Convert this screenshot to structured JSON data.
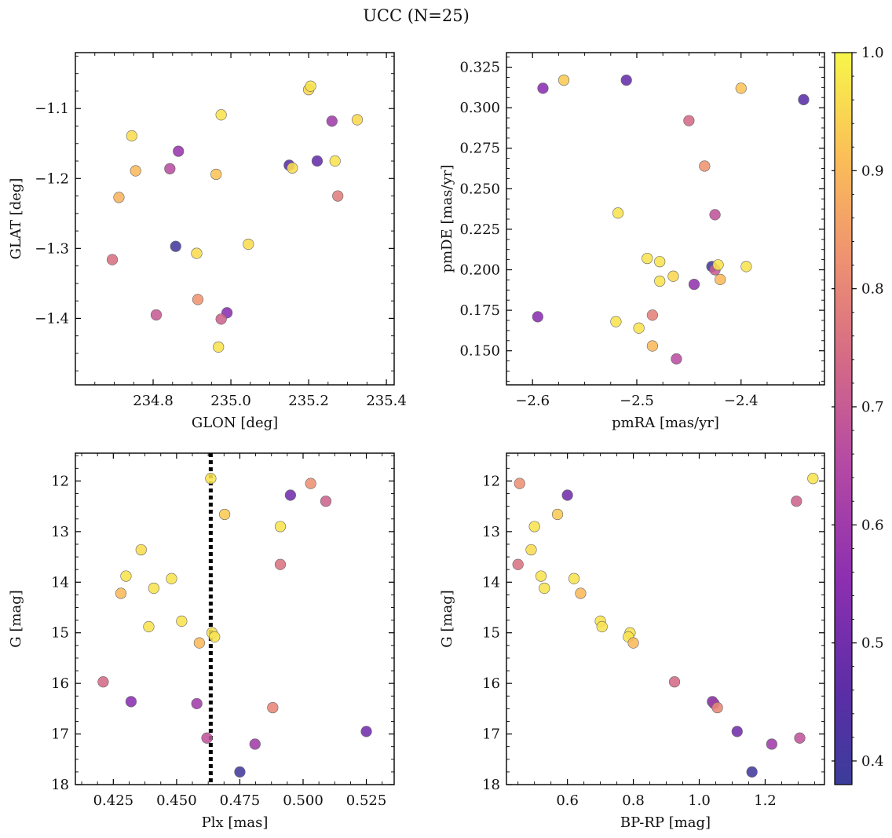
{
  "figure": {
    "title": "UCC (N=25)"
  },
  "colorbar": {
    "min": 0.38,
    "max": 1.0,
    "ticks": [
      0.4,
      0.5,
      0.6,
      0.7,
      0.8,
      0.9,
      1.0
    ],
    "tick_labels": [
      "0.4",
      "0.5",
      "0.6",
      "0.7",
      "0.8",
      "0.9",
      "1.0"
    ],
    "colormap": "plasma"
  },
  "chart_data": [
    {
      "type": "scatter",
      "id": "glon-glat",
      "xlabel": "GLON [deg]",
      "ylabel": "GLAT [deg]",
      "xlim": [
        234.6,
        235.42
      ],
      "ylim": [
        -1.495,
        -1.02
      ],
      "y_inverted": false,
      "xticks": [
        234.8,
        235.0,
        235.2,
        235.4
      ],
      "xtick_labels": [
        "234.8",
        "235.0",
        "235.2",
        "235.4"
      ],
      "yticks": [
        -1.4,
        -1.3,
        -1.2,
        -1.1
      ],
      "ytick_labels": [
        "−1.4",
        "−1.3",
        "−1.2",
        "−1.1"
      ],
      "points": [
        {
          "x": 235.2,
          "y": -1.073,
          "c": 0.95
        },
        {
          "x": 235.205,
          "y": -1.068,
          "c": 0.97
        },
        {
          "x": 234.975,
          "y": -1.109,
          "c": 0.97
        },
        {
          "x": 235.26,
          "y": -1.118,
          "c": 0.6
        },
        {
          "x": 235.325,
          "y": -1.116,
          "c": 0.95
        },
        {
          "x": 234.745,
          "y": -1.139,
          "c": 0.96
        },
        {
          "x": 234.865,
          "y": -1.161,
          "c": 0.58
        },
        {
          "x": 235.15,
          "y": -1.181,
          "c": 0.45
        },
        {
          "x": 235.158,
          "y": -1.185,
          "c": 0.96
        },
        {
          "x": 235.222,
          "y": -1.175,
          "c": 0.48
        },
        {
          "x": 235.268,
          "y": -1.175,
          "c": 0.97
        },
        {
          "x": 234.755,
          "y": -1.189,
          "c": 0.9
        },
        {
          "x": 234.843,
          "y": -1.186,
          "c": 0.66
        },
        {
          "x": 234.962,
          "y": -1.194,
          "c": 0.92
        },
        {
          "x": 235.275,
          "y": -1.225,
          "c": 0.78
        },
        {
          "x": 234.712,
          "y": -1.227,
          "c": 0.89
        },
        {
          "x": 235.045,
          "y": -1.294,
          "c": 0.96
        },
        {
          "x": 234.858,
          "y": -1.297,
          "c": 0.4
        },
        {
          "x": 234.912,
          "y": -1.307,
          "c": 0.96
        },
        {
          "x": 234.695,
          "y": -1.316,
          "c": 0.75
        },
        {
          "x": 234.915,
          "y": -1.373,
          "c": 0.83
        },
        {
          "x": 234.99,
          "y": -1.392,
          "c": 0.55
        },
        {
          "x": 234.808,
          "y": -1.395,
          "c": 0.7
        },
        {
          "x": 234.975,
          "y": -1.401,
          "c": 0.72
        },
        {
          "x": 234.968,
          "y": -1.441,
          "c": 0.97
        }
      ]
    },
    {
      "type": "scatter",
      "id": "pmra-pmde",
      "xlabel": "pmRA [mas/yr]",
      "ylabel": "pmDE [mas/yr]",
      "xlim": [
        -2.625,
        -2.32
      ],
      "ylim": [
        0.129,
        0.334
      ],
      "y_inverted": false,
      "xticks": [
        -2.6,
        -2.5,
        -2.4
      ],
      "xtick_labels": [
        "−2.6",
        "−2.5",
        "−2.4"
      ],
      "yticks": [
        0.15,
        0.175,
        0.2,
        0.225,
        0.25,
        0.275,
        0.3,
        0.325
      ],
      "ytick_labels": [
        "0.150",
        "0.175",
        "0.200",
        "0.225",
        "0.250",
        "0.275",
        "0.300",
        "0.325"
      ],
      "points": [
        {
          "x": -2.59,
          "y": 0.312,
          "c": 0.55
        },
        {
          "x": -2.57,
          "y": 0.317,
          "c": 0.93
        },
        {
          "x": -2.51,
          "y": 0.317,
          "c": 0.48
        },
        {
          "x": -2.4,
          "y": 0.312,
          "c": 0.92
        },
        {
          "x": -2.34,
          "y": 0.305,
          "c": 0.45
        },
        {
          "x": -2.45,
          "y": 0.292,
          "c": 0.74
        },
        {
          "x": -2.435,
          "y": 0.264,
          "c": 0.83
        },
        {
          "x": -2.518,
          "y": 0.235,
          "c": 0.97
        },
        {
          "x": -2.425,
          "y": 0.234,
          "c": 0.68
        },
        {
          "x": -2.49,
          "y": 0.207,
          "c": 0.97
        },
        {
          "x": -2.478,
          "y": 0.205,
          "c": 0.97
        },
        {
          "x": -2.428,
          "y": 0.202,
          "c": 0.4
        },
        {
          "x": -2.425,
          "y": 0.2,
          "c": 0.7
        },
        {
          "x": -2.422,
          "y": 0.203,
          "c": 0.97
        },
        {
          "x": -2.395,
          "y": 0.202,
          "c": 0.97
        },
        {
          "x": -2.465,
          "y": 0.196,
          "c": 0.95
        },
        {
          "x": -2.42,
          "y": 0.194,
          "c": 0.9
        },
        {
          "x": -2.478,
          "y": 0.193,
          "c": 0.97
        },
        {
          "x": -2.445,
          "y": 0.191,
          "c": 0.57
        },
        {
          "x": -2.595,
          "y": 0.171,
          "c": 0.55
        },
        {
          "x": -2.485,
          "y": 0.172,
          "c": 0.79
        },
        {
          "x": -2.52,
          "y": 0.168,
          "c": 0.97
        },
        {
          "x": -2.498,
          "y": 0.164,
          "c": 0.97
        },
        {
          "x": -2.485,
          "y": 0.153,
          "c": 0.9
        },
        {
          "x": -2.462,
          "y": 0.145,
          "c": 0.66
        }
      ]
    },
    {
      "type": "scatter",
      "id": "plx-g",
      "xlabel": "Plx [mas]",
      "ylabel": "G [mag]",
      "xlim": [
        0.41,
        0.536
      ],
      "ylim": [
        11.45,
        18.0
      ],
      "y_inverted": true,
      "xticks": [
        0.425,
        0.45,
        0.475,
        0.5,
        0.525
      ],
      "xtick_labels": [
        "0.425",
        "0.450",
        "0.475",
        "0.500",
        "0.525"
      ],
      "yticks": [
        12,
        13,
        14,
        15,
        16,
        17,
        18
      ],
      "ytick_labels": [
        "12",
        "13",
        "14",
        "15",
        "16",
        "17",
        "18"
      ],
      "vline": 0.4635,
      "points": [
        {
          "x": 0.4635,
          "y": 11.95,
          "c": 0.97
        },
        {
          "x": 0.503,
          "y": 12.05,
          "c": 0.82
        },
        {
          "x": 0.495,
          "y": 12.28,
          "c": 0.5
        },
        {
          "x": 0.509,
          "y": 12.4,
          "c": 0.72
        },
        {
          "x": 0.469,
          "y": 12.66,
          "c": 0.93
        },
        {
          "x": 0.491,
          "y": 12.9,
          "c": 0.97
        },
        {
          "x": 0.436,
          "y": 13.36,
          "c": 0.96
        },
        {
          "x": 0.491,
          "y": 13.65,
          "c": 0.76
        },
        {
          "x": 0.43,
          "y": 13.88,
          "c": 0.97
        },
        {
          "x": 0.448,
          "y": 13.93,
          "c": 0.97
        },
        {
          "x": 0.441,
          "y": 14.12,
          "c": 0.97
        },
        {
          "x": 0.428,
          "y": 14.22,
          "c": 0.9
        },
        {
          "x": 0.452,
          "y": 14.77,
          "c": 0.97
        },
        {
          "x": 0.439,
          "y": 14.88,
          "c": 0.97
        },
        {
          "x": 0.464,
          "y": 15.0,
          "c": 0.97
        },
        {
          "x": 0.465,
          "y": 15.08,
          "c": 0.97
        },
        {
          "x": 0.459,
          "y": 15.2,
          "c": 0.9
        },
        {
          "x": 0.421,
          "y": 15.97,
          "c": 0.74
        },
        {
          "x": 0.432,
          "y": 16.36,
          "c": 0.55
        },
        {
          "x": 0.458,
          "y": 16.4,
          "c": 0.6
        },
        {
          "x": 0.488,
          "y": 16.48,
          "c": 0.8
        },
        {
          "x": 0.525,
          "y": 16.95,
          "c": 0.5
        },
        {
          "x": 0.462,
          "y": 17.08,
          "c": 0.68
        },
        {
          "x": 0.481,
          "y": 17.2,
          "c": 0.6
        },
        {
          "x": 0.475,
          "y": 17.75,
          "c": 0.4
        }
      ]
    },
    {
      "type": "scatter",
      "id": "bprp-g",
      "xlabel": "BP-RP [mag]",
      "ylabel": "G [mag]",
      "xlim": [
        0.415,
        1.38
      ],
      "ylim": [
        11.45,
        18.0
      ],
      "y_inverted": true,
      "xticks": [
        0.6,
        0.8,
        1.0,
        1.2
      ],
      "xtick_labels": [
        "0.6",
        "0.8",
        "1.0",
        "1.2"
      ],
      "yticks": [
        12,
        13,
        14,
        15,
        16,
        17,
        18
      ],
      "ytick_labels": [
        "12",
        "13",
        "14",
        "15",
        "16",
        "17",
        "18"
      ],
      "points": [
        {
          "x": 0.455,
          "y": 12.05,
          "c": 0.82
        },
        {
          "x": 0.6,
          "y": 12.28,
          "c": 0.5
        },
        {
          "x": 1.345,
          "y": 11.95,
          "c": 0.97
        },
        {
          "x": 1.295,
          "y": 12.4,
          "c": 0.72
        },
        {
          "x": 0.57,
          "y": 12.66,
          "c": 0.93
        },
        {
          "x": 0.5,
          "y": 12.9,
          "c": 0.97
        },
        {
          "x": 0.49,
          "y": 13.36,
          "c": 0.96
        },
        {
          "x": 0.45,
          "y": 13.65,
          "c": 0.76
        },
        {
          "x": 0.52,
          "y": 13.88,
          "c": 0.97
        },
        {
          "x": 0.62,
          "y": 13.93,
          "c": 0.97
        },
        {
          "x": 0.53,
          "y": 14.12,
          "c": 0.97
        },
        {
          "x": 0.64,
          "y": 14.22,
          "c": 0.9
        },
        {
          "x": 0.7,
          "y": 14.77,
          "c": 0.97
        },
        {
          "x": 0.705,
          "y": 14.88,
          "c": 0.97
        },
        {
          "x": 0.79,
          "y": 15.0,
          "c": 0.97
        },
        {
          "x": 0.785,
          "y": 15.08,
          "c": 0.97
        },
        {
          "x": 0.8,
          "y": 15.2,
          "c": 0.9
        },
        {
          "x": 0.925,
          "y": 15.97,
          "c": 0.74
        },
        {
          "x": 1.04,
          "y": 16.36,
          "c": 0.55
        },
        {
          "x": 1.045,
          "y": 16.4,
          "c": 0.6
        },
        {
          "x": 1.055,
          "y": 16.48,
          "c": 0.8
        },
        {
          "x": 1.115,
          "y": 16.95,
          "c": 0.5
        },
        {
          "x": 1.305,
          "y": 17.08,
          "c": 0.68
        },
        {
          "x": 1.22,
          "y": 17.2,
          "c": 0.6
        },
        {
          "x": 1.16,
          "y": 17.75,
          "c": 0.4
        }
      ]
    }
  ]
}
